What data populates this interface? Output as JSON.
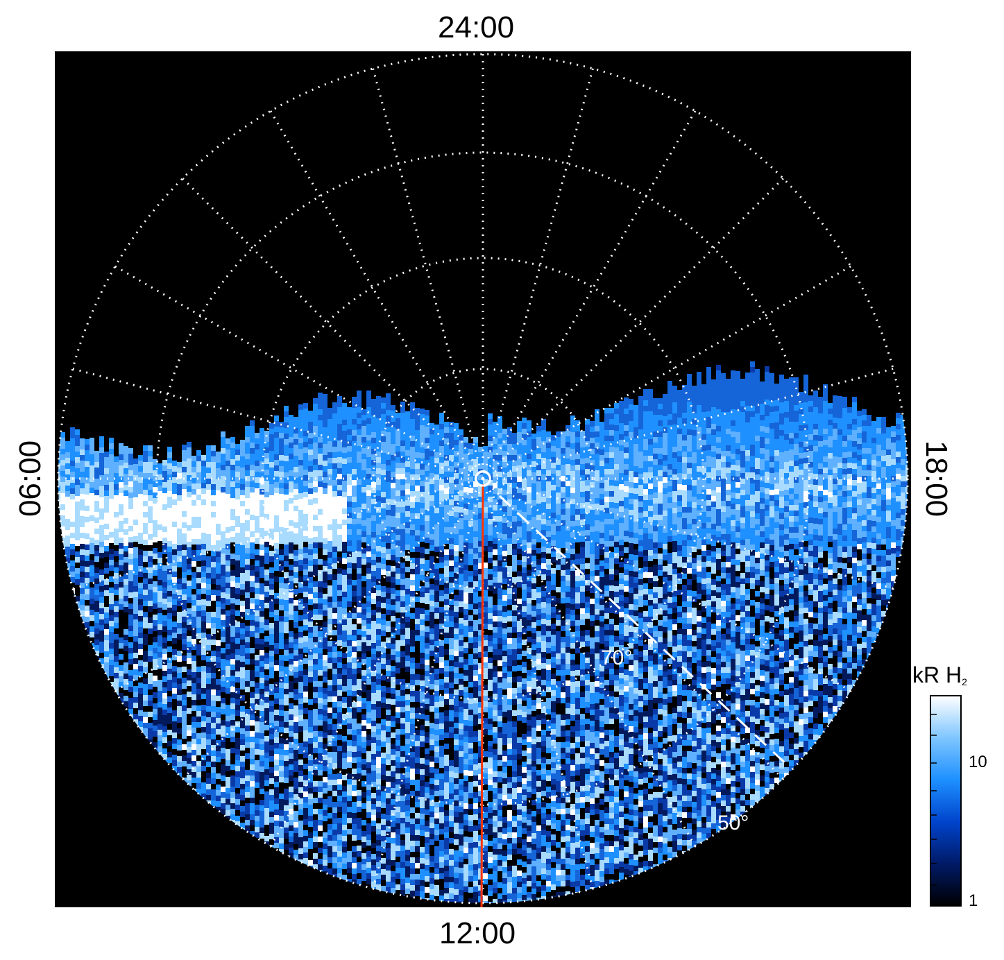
{
  "local_time_labels": {
    "top": "24:00",
    "bottom": "12:00",
    "left": "06:00",
    "right": "18:00"
  },
  "latitude_labels": {
    "inner": "70°",
    "outer": "50°"
  },
  "colorbar": {
    "unit": "kR H",
    "unit_subscript": "2",
    "scale": "log",
    "range": [
      1,
      30
    ],
    "ticks": [
      "10",
      "1"
    ],
    "colors": [
      "#000000",
      "#001a66",
      "#0044cc",
      "#1e90ff",
      "#7fc6ff",
      "#ffffff"
    ]
  },
  "colors": {
    "background": "#000000",
    "grid": "#ffffff",
    "meridian_line": "#ff3300",
    "emission_dark": "#021a5c",
    "emission_mid": "#1a7fff",
    "emission_bright": "#e8f6ff"
  }
}
